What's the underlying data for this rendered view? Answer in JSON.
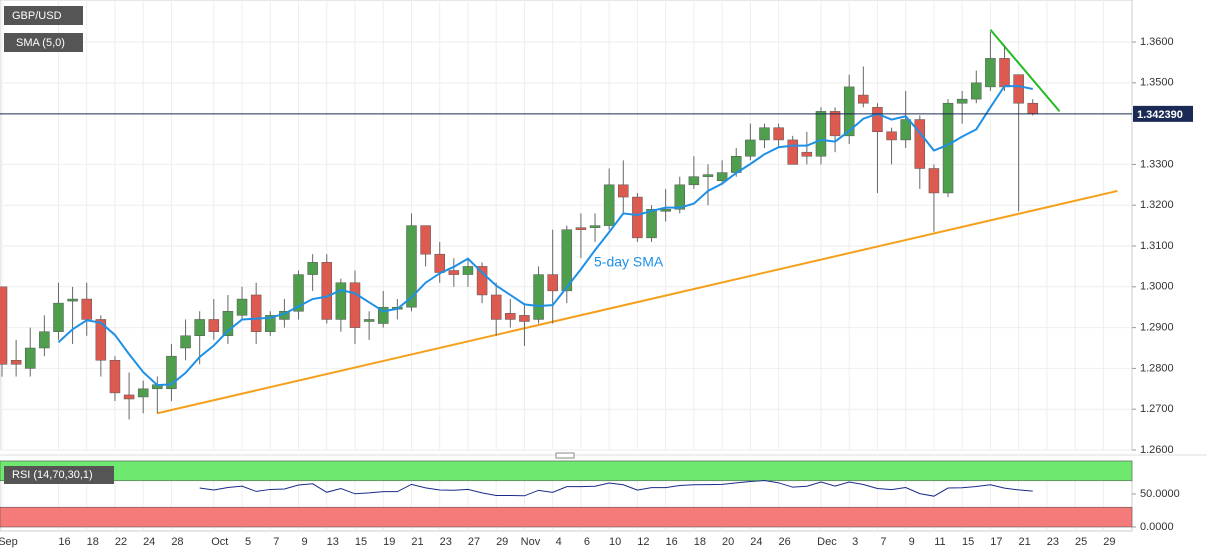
{
  "chart_data": {
    "type": "candlestick",
    "title": "GBP/USD",
    "categories": [
      "Sep",
      null,
      null,
      null,
      "16",
      null,
      "18",
      null,
      "22",
      null,
      "24",
      null,
      "28",
      null,
      null,
      "Oct",
      null,
      "5",
      null,
      "7",
      null,
      "9",
      null,
      "13",
      null,
      "15",
      null,
      "19",
      null,
      "21",
      null,
      "23",
      null,
      "27",
      null,
      "29",
      null,
      "Nov",
      null,
      "4",
      null,
      "6",
      null,
      "10",
      null,
      "12",
      null,
      "16",
      null,
      "18",
      null,
      "20",
      null,
      "24",
      null,
      "26",
      null,
      null,
      "Dec",
      null,
      "3",
      null,
      "7",
      null,
      "9",
      null,
      "11",
      null,
      "15",
      null,
      "17",
      null,
      "21",
      null,
      "23",
      null,
      "25",
      null,
      "29"
    ],
    "open": [
      1.3,
      1.282,
      1.28,
      1.285,
      1.289,
      1.2965,
      1.297,
      1.292,
      1.282,
      1.2735,
      1.273,
      1.275,
      1.275,
      1.285,
      1.288,
      1.292,
      1.288,
      1.293,
      1.298,
      1.289,
      1.292,
      1.294,
      1.303,
      1.306,
      1.292,
      1.301,
      1.2915,
      1.291,
      1.2945,
      1.295,
      1.315,
      1.308,
      1.304,
      1.303,
      1.305,
      1.298,
      1.2935,
      1.293,
      1.292,
      1.303,
      1.299,
      1.3145,
      1.3145,
      1.315,
      1.325,
      1.322,
      1.312,
      1.3185,
      1.319,
      1.325,
      1.327,
      1.326,
      1.328,
      1.332,
      1.336,
      1.339,
      1.336,
      1.333,
      1.332,
      1.343,
      1.337,
      1.347,
      1.344,
      1.338,
      1.336,
      1.341,
      1.329,
      1.323,
      1.345,
      1.346,
      1.349,
      1.356,
      1.352,
      1.345,
      null,
      null,
      null,
      null,
      null
    ],
    "high": [
      1.3,
      1.287,
      1.29,
      1.293,
      1.301,
      1.3,
      1.301,
      1.293,
      1.283,
      1.279,
      1.277,
      1.278,
      1.286,
      1.292,
      1.294,
      1.297,
      1.298,
      1.3,
      1.301,
      1.294,
      1.297,
      1.304,
      1.308,
      1.308,
      1.302,
      1.304,
      1.294,
      1.299,
      1.297,
      1.318,
      1.315,
      1.311,
      1.307,
      1.307,
      1.306,
      1.301,
      1.297,
      1.296,
      1.305,
      1.314,
      1.315,
      1.318,
      1.318,
      1.329,
      1.331,
      1.323,
      1.32,
      1.324,
      1.327,
      1.332,
      1.33,
      1.331,
      1.334,
      1.34,
      1.34,
      1.34,
      1.337,
      1.338,
      1.344,
      1.344,
      1.352,
      1.354,
      1.345,
      1.339,
      1.348,
      1.342,
      1.33,
      1.346,
      1.348,
      1.353,
      1.3625,
      1.359,
      1.352,
      1.346,
      null,
      null,
      null,
      null,
      null
    ],
    "low": [
      1.278,
      1.278,
      1.278,
      1.283,
      1.287,
      1.286,
      1.288,
      1.278,
      1.272,
      1.2675,
      1.269,
      1.269,
      1.272,
      1.282,
      1.281,
      1.287,
      1.286,
      1.292,
      1.286,
      1.288,
      1.29,
      1.292,
      1.299,
      1.291,
      1.289,
      1.286,
      1.287,
      1.29,
      1.292,
      1.294,
      1.305,
      1.301,
      1.3,
      1.3,
      1.296,
      1.288,
      1.29,
      1.2855,
      1.291,
      1.291,
      1.296,
      1.307,
      1.311,
      1.314,
      1.318,
      1.311,
      1.311,
      1.316,
      1.318,
      1.324,
      1.32,
      1.325,
      1.327,
      1.331,
      1.334,
      1.334,
      1.33,
      1.33,
      1.33,
      1.333,
      1.335,
      1.344,
      1.323,
      1.33,
      1.334,
      1.324,
      1.3135,
      1.322,
      1.34,
      1.345,
      1.348,
      1.348,
      1.3185,
      1.342,
      null,
      null,
      null,
      null,
      null
    ],
    "close": [
      1.281,
      1.281,
      1.285,
      1.289,
      1.296,
      1.297,
      1.292,
      1.282,
      1.274,
      1.2725,
      1.275,
      1.276,
      1.283,
      1.288,
      1.292,
      1.289,
      1.294,
      1.297,
      1.289,
      1.293,
      1.294,
      1.303,
      1.306,
      1.292,
      1.301,
      1.29,
      1.292,
      1.295,
      1.295,
      1.315,
      1.308,
      1.3035,
      1.303,
      1.305,
      1.298,
      1.292,
      1.292,
      1.2915,
      1.303,
      1.299,
      1.314,
      1.314,
      1.315,
      1.325,
      1.322,
      1.312,
      1.319,
      1.319,
      1.325,
      1.327,
      1.3275,
      1.328,
      1.332,
      1.336,
      1.339,
      1.336,
      1.33,
      1.332,
      1.343,
      1.337,
      1.349,
      1.345,
      1.338,
      1.336,
      1.341,
      1.329,
      1.323,
      1.345,
      1.346,
      1.35,
      1.356,
      1.349,
      1.345,
      1.3424,
      null,
      null,
      null,
      null,
      null
    ],
    "up_color": "#4e9e4e",
    "down_color": "#dc5a4f",
    "ylim": [
      1.26,
      1.3703
    ],
    "yticks": [
      {
        "value": 1.26,
        "label": "1.2600"
      },
      {
        "value": 1.27,
        "label": "1.2700"
      },
      {
        "value": 1.28,
        "label": "1.2800"
      },
      {
        "value": 1.29,
        "label": "1.2900"
      },
      {
        "value": 1.3,
        "label": "1.3000"
      },
      {
        "value": 1.31,
        "label": "1.3100"
      },
      {
        "value": 1.32,
        "label": "1.3200"
      },
      {
        "value": 1.33,
        "label": "1.3300"
      },
      {
        "value": 1.35,
        "label": "1.3500"
      },
      {
        "value": 1.36,
        "label": "1.3600"
      }
    ],
    "grid": true,
    "last_price": {
      "value": 1.34239,
      "label": "1.342390"
    },
    "sma": {
      "label": "SMA (5,0)",
      "period": 5,
      "color": "#1e90e6",
      "annotation": "5-day SMA"
    },
    "trendlines": [
      {
        "color": "#f5a01a",
        "points": [
          [
            11,
            1.269
          ],
          [
            79,
            1.3235
          ]
        ]
      },
      {
        "color": "#22bb22",
        "points": [
          [
            70,
            1.363
          ],
          [
            74.9,
            1.343
          ]
        ]
      }
    ],
    "rsi": {
      "label": "RSI (14,70,30,1)",
      "period": 14,
      "upper": 70,
      "lower": 30,
      "color": "#1a2a8a",
      "ylim": [
        0,
        100
      ],
      "yticks": [
        {
          "value": 0,
          "label": "0.0000"
        },
        {
          "value": 50,
          "label": "50.0000"
        }
      ]
    }
  }
}
